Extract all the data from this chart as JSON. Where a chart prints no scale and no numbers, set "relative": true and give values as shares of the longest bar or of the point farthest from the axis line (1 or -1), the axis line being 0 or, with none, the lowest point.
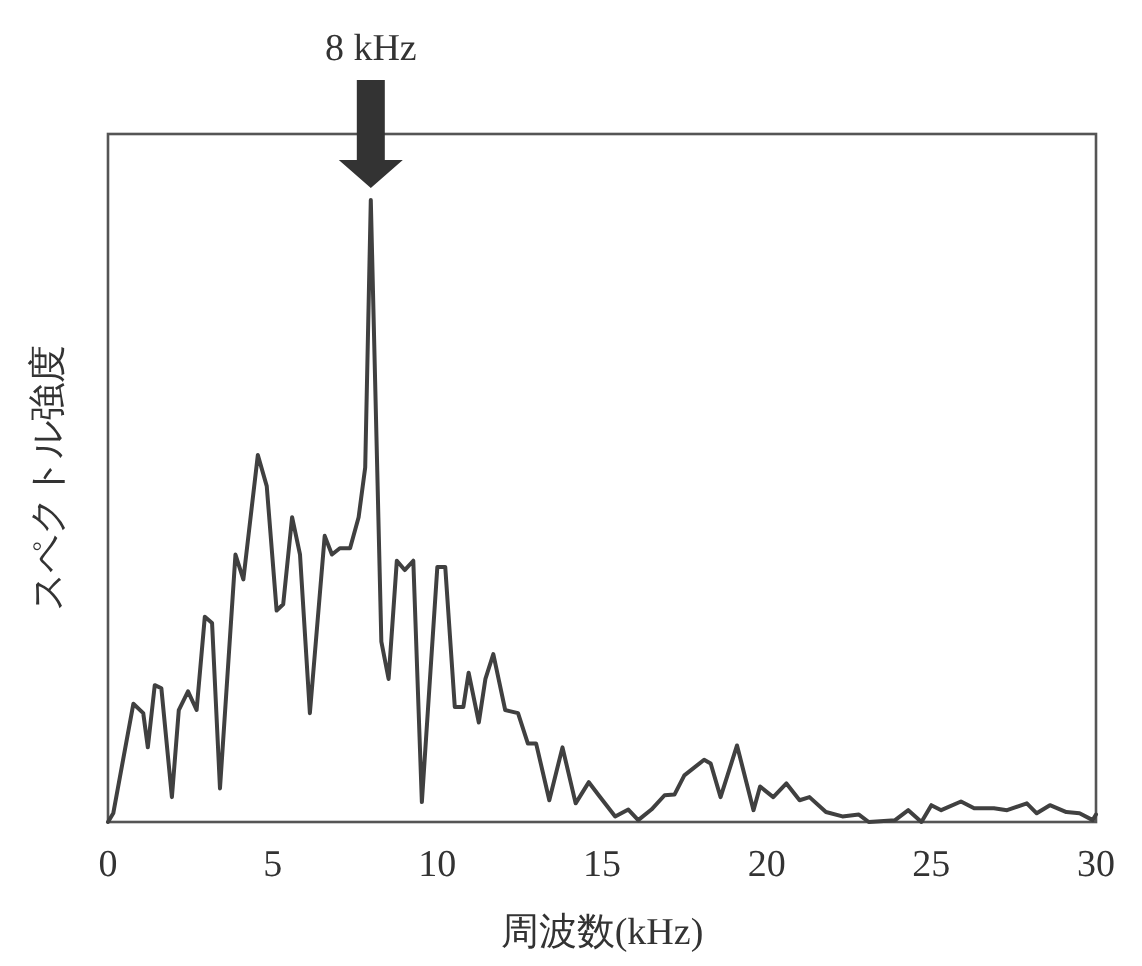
{
  "chart_data": {
    "type": "line",
    "relative": true,
    "xlabel": "周波数(kHz)",
    "ylabel": "スペクトル強度",
    "xlim": [
      0,
      30
    ],
    "xticks": [
      0,
      5,
      10,
      15,
      20,
      25,
      30
    ],
    "grid": false,
    "marker": "none",
    "line_style": "solid",
    "annotations": [
      "8 kHz"
    ],
    "series": [
      {
        "color": "#404040",
        "x": [
          0,
          0.16,
          0.77,
          1.07,
          1.21,
          1.42,
          1.62,
          1.94,
          2.15,
          2.43,
          2.69,
          2.94,
          3.16,
          3.4,
          3.87,
          4.11,
          4.55,
          4.82,
          5.12,
          5.32,
          5.59,
          5.83,
          6.13,
          6.58,
          6.8,
          7.04,
          7.35,
          7.61,
          7.81,
          7.98,
          8.3,
          8.52,
          8.77,
          9.01,
          9.27,
          9.53,
          10.0,
          10.24,
          10.53,
          10.79,
          10.95,
          11.26,
          11.46,
          11.7,
          12.06,
          12.45,
          12.75,
          13.0,
          13.4,
          13.8,
          14.2,
          14.6,
          14.9,
          15.4,
          15.8,
          16.1,
          16.5,
          16.9,
          17.2,
          17.5,
          18.1,
          18.3,
          18.6,
          19.1,
          19.6,
          19.8,
          20.2,
          20.6,
          21.0,
          21.3,
          21.8,
          22.3,
          22.8,
          23.1,
          23.9,
          24.3,
          24.7,
          25.0,
          25.3,
          25.9,
          26.3,
          26.9,
          27.3,
          27.9,
          28.2,
          28.6,
          29.1,
          29.5,
          29.9,
          30
        ],
        "values": [
          0,
          0.014,
          0.19,
          0.175,
          0.12,
          0.22,
          0.215,
          0.04,
          0.18,
          0.21,
          0.18,
          0.33,
          0.32,
          0.054,
          0.43,
          0.39,
          0.59,
          0.54,
          0.34,
          0.35,
          0.49,
          0.43,
          0.175,
          0.46,
          0.43,
          0.44,
          0.44,
          0.49,
          0.57,
          1,
          0.29,
          0.23,
          0.42,
          0.405,
          0.42,
          0.032,
          0.41,
          0.41,
          0.185,
          0.185,
          0.24,
          0.16,
          0.23,
          0.27,
          0.18,
          0.175,
          0.126,
          0.126,
          0.035,
          0.12,
          0.03,
          0.064,
          0.043,
          0.009,
          0.02,
          0.003,
          0.02,
          0.043,
          0.044,
          0.075,
          0.1,
          0.094,
          0.04,
          0.123,
          0.019,
          0.057,
          0.04,
          0.062,
          0.035,
          0.04,
          0.016,
          0.009,
          0.012,
          0,
          0.003,
          0.019,
          0,
          0.027,
          0.019,
          0.033,
          0.022,
          0.022,
          0.019,
          0.03,
          0.014,
          0.027,
          0.016,
          0.014,
          0.003,
          0.012
        ]
      }
    ]
  }
}
